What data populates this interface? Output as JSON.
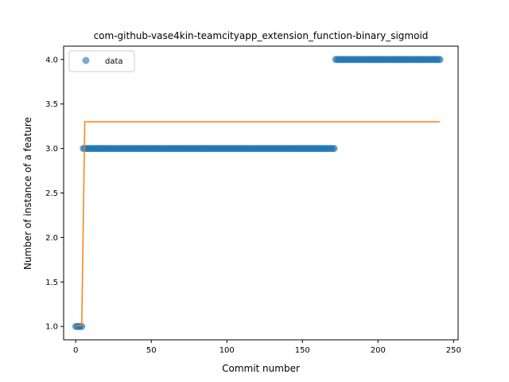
{
  "chart_data": {
    "type": "scatter",
    "title": "com-github-vase4kin-teamcityapp_extension_function-binary_sigmoid",
    "xlabel": "Commit number",
    "ylabel": "Number of instance of a feature",
    "xlim": [
      -8,
      253
    ],
    "ylim": [
      0.85,
      4.15
    ],
    "xticks": [
      0,
      50,
      100,
      150,
      200,
      250
    ],
    "yticks": [
      1.0,
      1.5,
      2.0,
      2.5,
      3.0,
      3.5,
      4.0
    ],
    "xtick_labels": [
      "0",
      "50",
      "100",
      "150",
      "200",
      "250"
    ],
    "ytick_labels": [
      "1.0",
      "1.5",
      "2.0",
      "2.5",
      "3.0",
      "3.5",
      "4.0"
    ],
    "grid": false,
    "legend": {
      "placement": "top-left",
      "entries": [
        "data"
      ]
    },
    "series": [
      {
        "name": "data",
        "kind": "scatter",
        "color": "#1f77b4",
        "segments": [
          {
            "x_start": 0,
            "x_end": 4,
            "y": 1.0
          },
          {
            "x_start": 5,
            "x_end": 171,
            "y": 3.0
          },
          {
            "x_start": 172,
            "x_end": 241,
            "y": 4.0
          }
        ]
      },
      {
        "kind": "line",
        "color": "#ff7f0e",
        "x": [
          0,
          4,
          6,
          241
        ],
        "y": [
          1.0,
          1.02,
          3.3,
          3.3
        ]
      }
    ]
  }
}
